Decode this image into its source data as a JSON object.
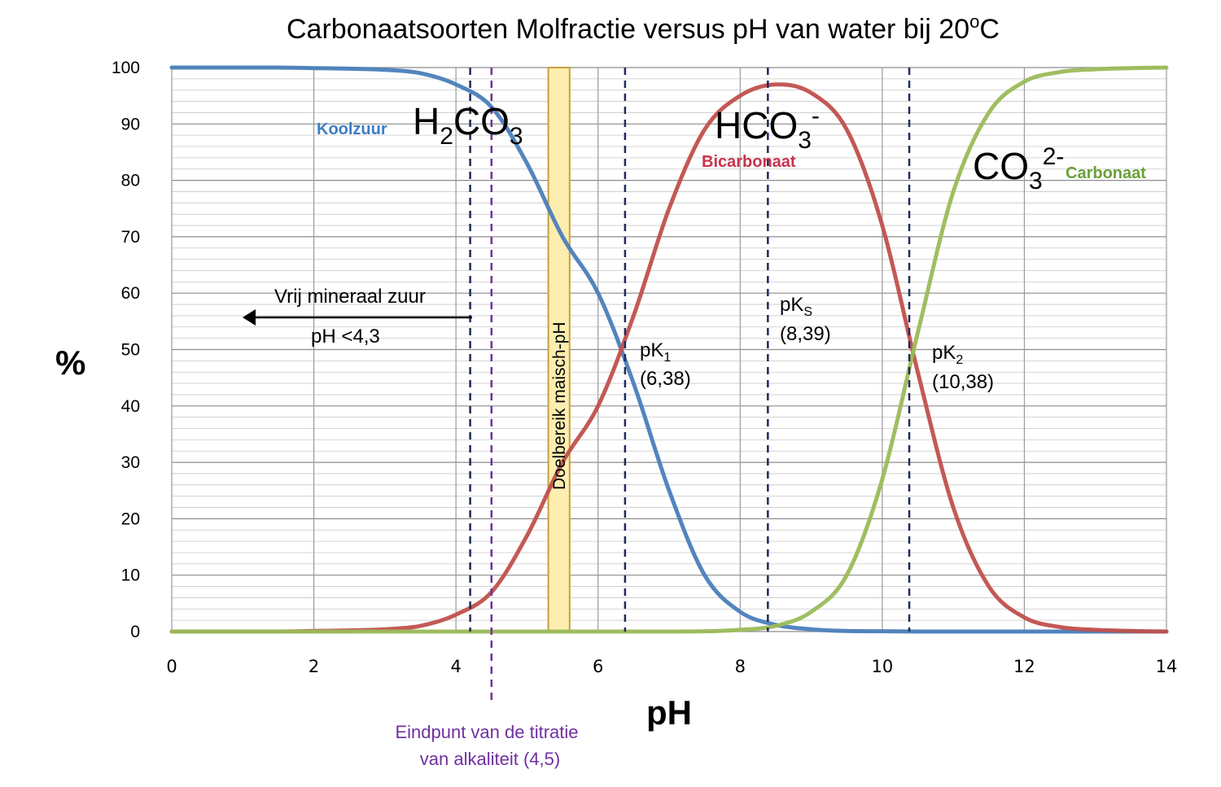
{
  "chart_data": {
    "type": "line",
    "title": "Carbonaatsoorten Molfractie versus pH van water bij 20",
    "title_sup": "o",
    "title_end": "C",
    "xlabel": "pH",
    "ylabel": "%",
    "xlim": [
      0,
      14
    ],
    "ylim": [
      0,
      100
    ],
    "x_ticks": [
      "0",
      "2",
      "4",
      "6",
      "8",
      "10",
      "12",
      "14"
    ],
    "y_ticks": [
      "0",
      "10",
      "20",
      "30",
      "40",
      "50",
      "60",
      "70",
      "80",
      "90",
      "100"
    ],
    "grid": true,
    "colors": {
      "koolzuur": "#4a7ebb",
      "bicarbonaat": "#c0504d",
      "carbonaat": "#9bbb59",
      "pk_lines": "#1f2a5a",
      "endpoint": "#7030a0",
      "band_fill": "#fdeeb0",
      "band_stroke": "#c8a040"
    },
    "x": [
      0,
      0.5,
      1,
      1.5,
      2,
      2.5,
      3,
      3.5,
      4,
      4.5,
      5,
      5.5,
      6,
      6.5,
      7,
      7.5,
      8,
      8.5,
      9,
      9.5,
      10,
      10.5,
      11,
      11.5,
      12,
      12.5,
      13,
      13.5,
      14
    ],
    "series": [
      {
        "key": "koolzuur",
        "values": [
          100,
          100,
          100,
          100,
          99.9,
          99.8,
          99.6,
          99.0,
          97.0,
          93.0,
          83.0,
          70.0,
          60.0,
          44.0,
          25.0,
          10.0,
          3.5,
          1.2,
          0.4,
          0.1,
          0.05,
          0,
          0,
          0,
          0,
          0,
          0,
          0,
          0
        ]
      },
      {
        "key": "bicarbonaat",
        "values": [
          0,
          0,
          0,
          0,
          0.1,
          0.2,
          0.4,
          1.0,
          3.0,
          7.0,
          17.0,
          30.0,
          40.0,
          56.0,
          75.0,
          89.0,
          95.0,
          97.0,
          95.5,
          89.0,
          72.0,
          46.0,
          22.0,
          8.0,
          2.5,
          0.8,
          0.3,
          0.1,
          0
        ]
      },
      {
        "key": "carbonaat",
        "values": [
          0,
          0,
          0,
          0,
          0,
          0,
          0,
          0,
          0,
          0,
          0,
          0,
          0,
          0,
          0,
          0.05,
          0.3,
          1.0,
          3.5,
          10.0,
          27.0,
          53.0,
          78.0,
          92.0,
          97.5,
          99.2,
          99.7,
          99.9,
          100
        ]
      }
    ],
    "vertical_lines": [
      4.2,
      6.38,
      8.39,
      10.38
    ],
    "endpoint_line": 4.5,
    "target_band": [
      5.3,
      5.6
    ],
    "annotations": {
      "koolzuur": "Koolzuur",
      "h2co3": {
        "a": "H",
        "a_sub": "2",
        "b": "CO",
        "b_sub": "3"
      },
      "hco3": {
        "a": "HCO",
        "a_sub": "3",
        "sup": "-"
      },
      "bicarbonaat": "Bicarbonaat",
      "co3": {
        "a": "CO",
        "a_sub": "3",
        "sup": "2-"
      },
      "carbonaat": "Carbonaat",
      "vrij": "Vrij mineraal zuur",
      "vrij_ph": "pH <4,3",
      "doelbereik": "Doelbereik maisch-pH",
      "pk1": {
        "a": "pK",
        "sub": "1",
        "value": "(6,38)"
      },
      "pks": {
        "a": "pK",
        "sub": "S",
        "value": "(8,39)"
      },
      "pk2": {
        "a": "pK",
        "sub": "2",
        "value": "(10,38)"
      },
      "endpoint_line1": "Eindpunt van de titratie",
      "endpoint_line2": "van alkaliteit (4,5)"
    }
  }
}
